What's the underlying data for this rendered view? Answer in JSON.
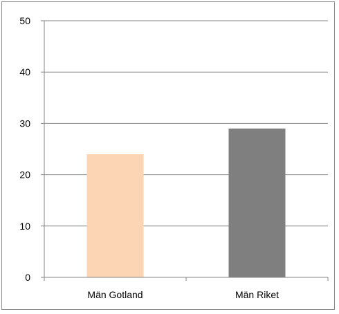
{
  "chart_data": {
    "type": "bar",
    "categories": [
      "Män Gotland",
      "Män Riket"
    ],
    "values": [
      24,
      29
    ],
    "bar_colors": [
      "#fcd5b4",
      "#7f7f7f"
    ],
    "ylim": [
      0,
      50
    ],
    "yticks": [
      0,
      10,
      20,
      30,
      40,
      50
    ],
    "grid": true,
    "legend": "none",
    "title": "",
    "xlabel": "",
    "ylabel": ""
  }
}
